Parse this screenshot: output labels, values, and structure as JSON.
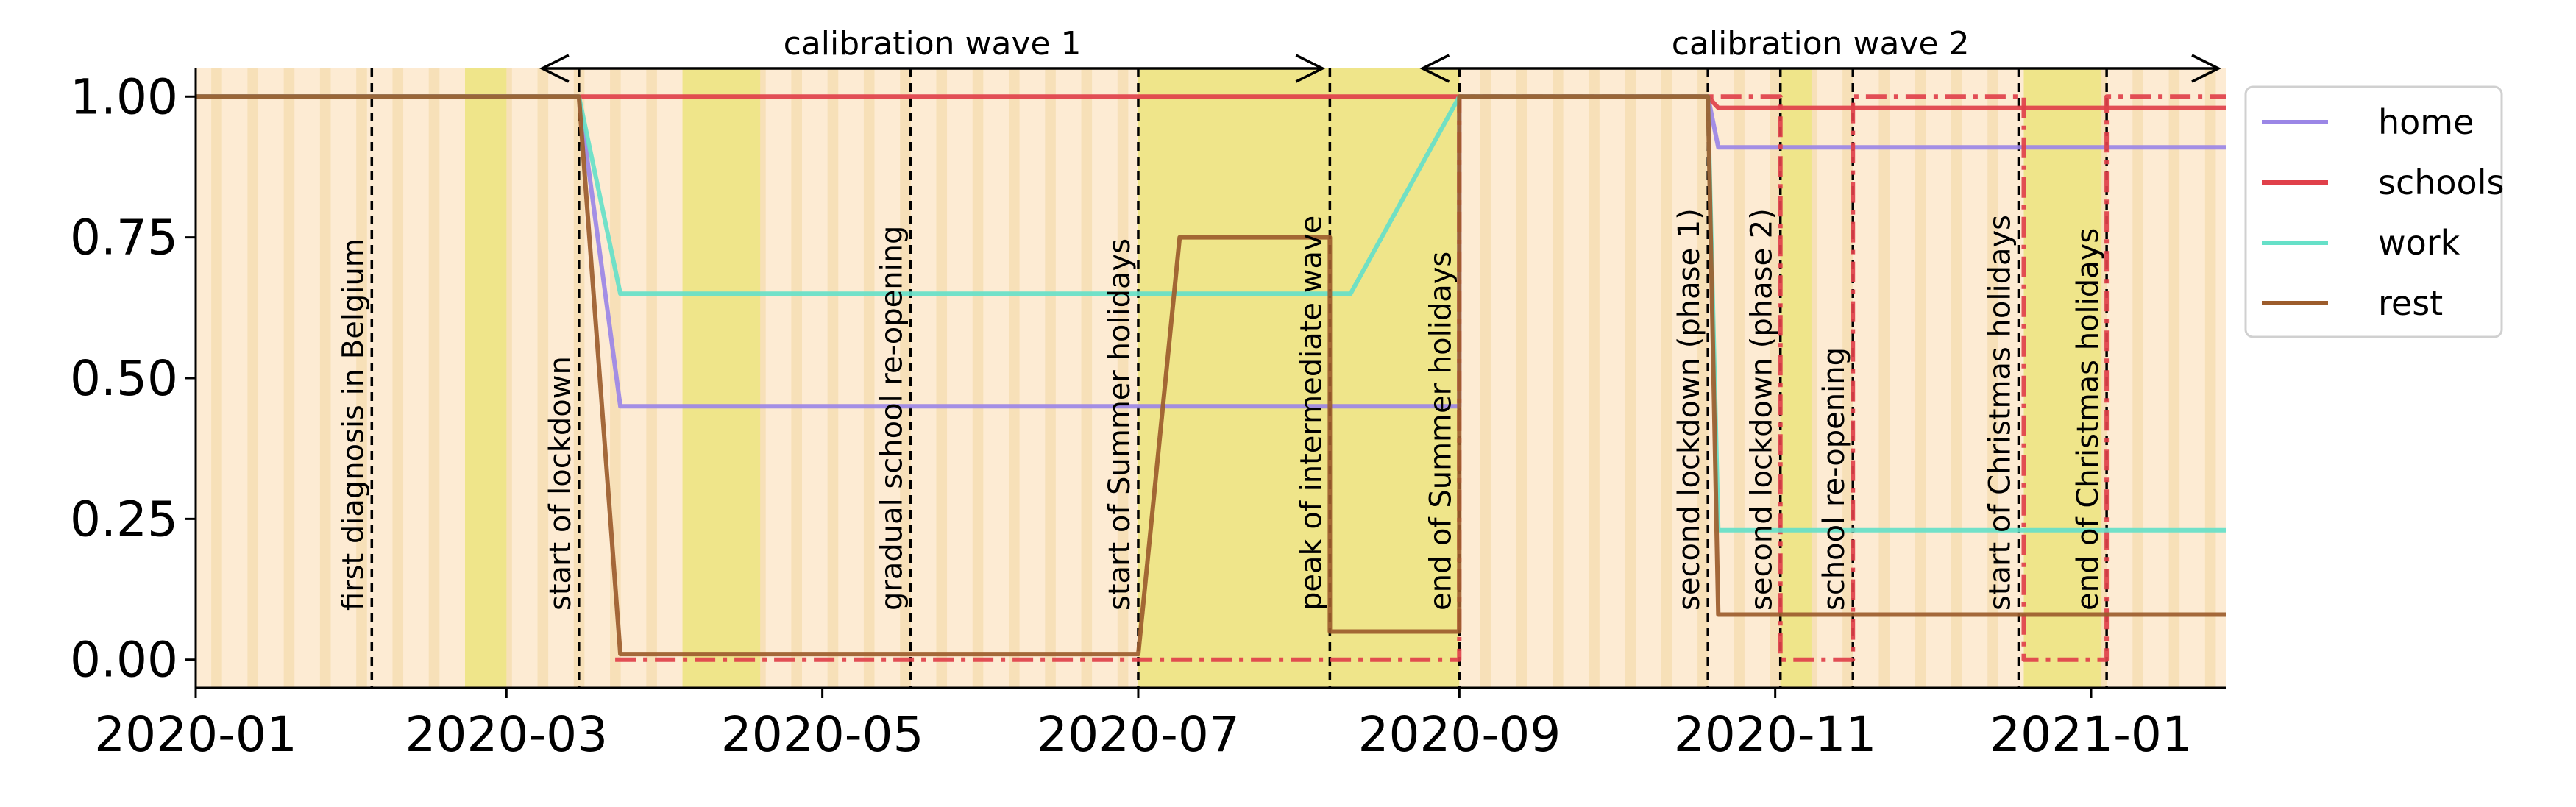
{
  "chart_data": {
    "type": "line",
    "title": "",
    "xlabel": "",
    "ylabel": "",
    "xlim": [
      "2020-01-01",
      "2021-01-27"
    ],
    "ylim": [
      -0.05,
      1.05
    ],
    "x_ticks": [
      "2020-01",
      "2020-03",
      "2020-05",
      "2020-07",
      "2020-09",
      "2020-11",
      "2021-01"
    ],
    "y_ticks": [
      "0.00",
      "0.25",
      "0.50",
      "0.75",
      "1.00"
    ],
    "legend_position": "outside-right-top",
    "series": [
      {
        "name": "home",
        "color": "#9b86e6",
        "dash": "solid",
        "points": [
          [
            "2020-01-01",
            1.0
          ],
          [
            "2020-03-15",
            1.0
          ],
          [
            "2020-03-23",
            0.45
          ],
          [
            "2020-09-01",
            0.45
          ],
          [
            "2020-09-01",
            1.0
          ],
          [
            "2020-10-19",
            1.0
          ],
          [
            "2020-10-21",
            0.91
          ],
          [
            "2021-01-27",
            0.91
          ]
        ]
      },
      {
        "name": "schools",
        "color": "#e0404a",
        "dash": "solid",
        "points": [
          [
            "2020-01-01",
            1.0
          ],
          [
            "2020-08-31",
            1.0
          ],
          [
            "2020-09-01",
            1.0
          ],
          [
            "2020-10-19",
            1.0
          ],
          [
            "2020-10-21",
            0.98
          ],
          [
            "2021-01-27",
            0.98
          ]
        ]
      },
      {
        "name": "schools",
        "color": "#e0404a",
        "dash": "dashdot",
        "points": [
          [
            "2020-03-22",
            0.0
          ],
          [
            "2020-08-31",
            0.0
          ],
          [
            "2020-09-01",
            0.0
          ],
          [
            "2020-09-01",
            1.0
          ],
          [
            "2020-11-02",
            1.0
          ],
          [
            "2020-11-02",
            0.0
          ],
          [
            "2020-11-16",
            0.0
          ],
          [
            "2020-11-16",
            1.0
          ],
          [
            "2020-12-19",
            1.0
          ],
          [
            "2020-12-19",
            0.0
          ],
          [
            "2021-01-04",
            0.0
          ],
          [
            "2021-01-04",
            1.0
          ],
          [
            "2021-01-27",
            1.0
          ]
        ]
      },
      {
        "name": "work",
        "color": "#66e0c8",
        "dash": "solid",
        "points": [
          [
            "2020-01-01",
            1.0
          ],
          [
            "2020-03-15",
            1.0
          ],
          [
            "2020-03-23",
            0.65
          ],
          [
            "2020-08-11",
            0.65
          ],
          [
            "2020-08-11",
            0.65
          ],
          [
            "2020-09-01",
            1.0
          ],
          [
            "2020-10-19",
            1.0
          ],
          [
            "2020-10-21",
            0.23
          ],
          [
            "2021-01-27",
            0.23
          ]
        ]
      },
      {
        "name": "rest",
        "color": "#9c5c2c",
        "dash": "solid",
        "points": [
          [
            "2020-01-01",
            1.0
          ],
          [
            "2020-03-15",
            1.0
          ],
          [
            "2020-03-23",
            0.01
          ],
          [
            "2020-07-01",
            0.01
          ],
          [
            "2020-07-09",
            0.75
          ],
          [
            "2020-08-07",
            0.75
          ],
          [
            "2020-08-07",
            0.05
          ],
          [
            "2020-09-01",
            0.05
          ],
          [
            "2020-09-01",
            1.0
          ],
          [
            "2020-10-19",
            1.0
          ],
          [
            "2020-10-21",
            0.08
          ],
          [
            "2021-01-27",
            0.08
          ]
        ]
      }
    ],
    "legend_entries": [
      {
        "name": "home",
        "color": "#9b86e6"
      },
      {
        "name": "schools",
        "color": "#e0404a"
      },
      {
        "name": "work",
        "color": "#66e0c8"
      },
      {
        "name": "rest",
        "color": "#9c5c2c"
      }
    ],
    "event_lines": [
      {
        "date": "2020-02-04",
        "label": "first diagnosis in Belgium"
      },
      {
        "date": "2020-03-15",
        "label": "start of lockdown"
      },
      {
        "date": "2020-05-18",
        "label": "gradual school re-opening"
      },
      {
        "date": "2020-07-01",
        "label": "start of Summer holidays"
      },
      {
        "date": "2020-08-07",
        "label": "peak of intermediate wave"
      },
      {
        "date": "2020-09-01",
        "label": "end of Summer holidays"
      },
      {
        "date": "2020-10-19",
        "label": "second lockdown (phase 1)"
      },
      {
        "date": "2020-11-02",
        "label": "second lockdown (phase 2)"
      },
      {
        "date": "2020-11-16",
        "label": "school re-opening"
      },
      {
        "date": "2020-12-18",
        "label": "start of Christmas holidays"
      },
      {
        "date": "2021-01-04",
        "label": "end of Christmas holidays"
      }
    ],
    "calibration_waves": [
      {
        "label": "calibration wave 1",
        "start": "2020-03-15",
        "end": "2020-08-07"
      },
      {
        "label": "calibration wave 2",
        "start": "2020-09-01",
        "end": "2021-01-27"
      }
    ],
    "holiday_shading": [
      {
        "start": "2020-02-22",
        "end": "2020-03-01"
      },
      {
        "start": "2020-04-04",
        "end": "2020-04-19"
      },
      {
        "start": "2020-07-01",
        "end": "2020-09-01"
      },
      {
        "start": "2020-11-02",
        "end": "2020-11-08"
      },
      {
        "start": "2020-12-19",
        "end": "2021-01-03"
      }
    ],
    "colors": {
      "weekday_light": "#fdebd3",
      "weekday_dark": "#f7e0b8",
      "holiday": "#efe58a",
      "axis": "#000000"
    }
  }
}
